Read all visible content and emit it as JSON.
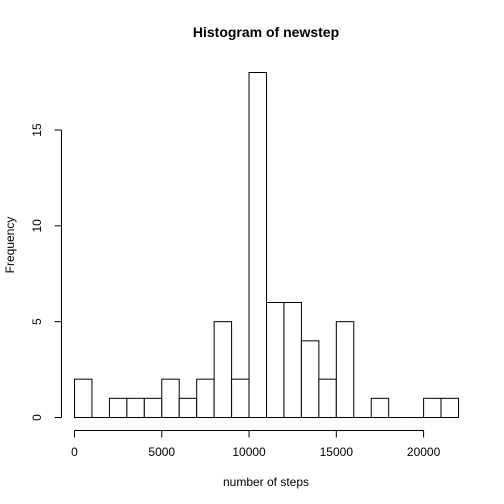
{
  "chart_data": {
    "type": "bar",
    "title": "Histogram of newstep",
    "xlabel": "number of steps",
    "ylabel": "Frequency",
    "bin_edges": [
      0,
      1000,
      2000,
      3000,
      4000,
      5000,
      6000,
      7000,
      8000,
      9000,
      10000,
      11000,
      12000,
      13000,
      14000,
      15000,
      16000,
      17000,
      18000,
      19000,
      20000,
      21000,
      22000
    ],
    "values": [
      2,
      0,
      1,
      1,
      1,
      2,
      1,
      2,
      5,
      2,
      18,
      6,
      6,
      4,
      2,
      5,
      0,
      1,
      0,
      0,
      1,
      1
    ],
    "xlim": [
      0,
      22000
    ],
    "ylim": [
      0,
      18
    ],
    "x_ticks": [
      0,
      5000,
      10000,
      15000,
      20000
    ],
    "x_tick_labels": [
      "0",
      "5000",
      "10000",
      "15000",
      "20000"
    ],
    "y_ticks": [
      0,
      5,
      10,
      15
    ],
    "y_tick_labels": [
      "0",
      "5",
      "10",
      "15"
    ],
    "bar_fill": "#ffffff",
    "bar_stroke": "#000000",
    "grid": false,
    "legend": "none"
  }
}
